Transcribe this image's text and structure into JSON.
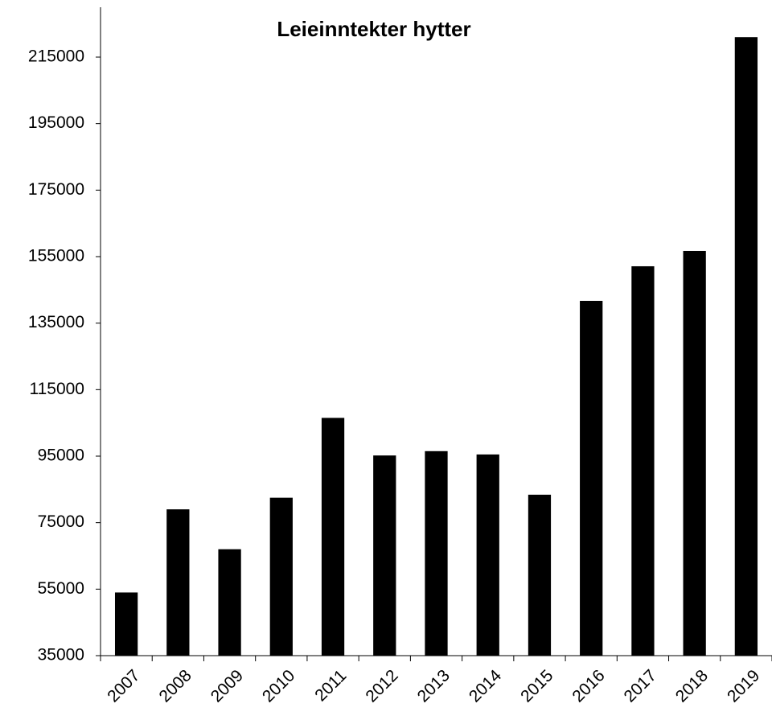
{
  "chart_data": {
    "type": "bar",
    "title": "Leieinntekter hytter",
    "categories": [
      "2007",
      "2008",
      "2009",
      "2010",
      "2011",
      "2012",
      "2013",
      "2014",
      "2015",
      "2016",
      "2017",
      "2018",
      "2019"
    ],
    "values": [
      54000,
      79000,
      67000,
      82500,
      106500,
      95200,
      96500,
      95500,
      83400,
      141700,
      152100,
      156700,
      221000
    ],
    "color": "#000000",
    "ylim": [
      35000,
      230000
    ],
    "yticks": [
      35000,
      55000,
      75000,
      95000,
      115000,
      135000,
      155000,
      175000,
      195000,
      215000
    ],
    "grid": false
  }
}
